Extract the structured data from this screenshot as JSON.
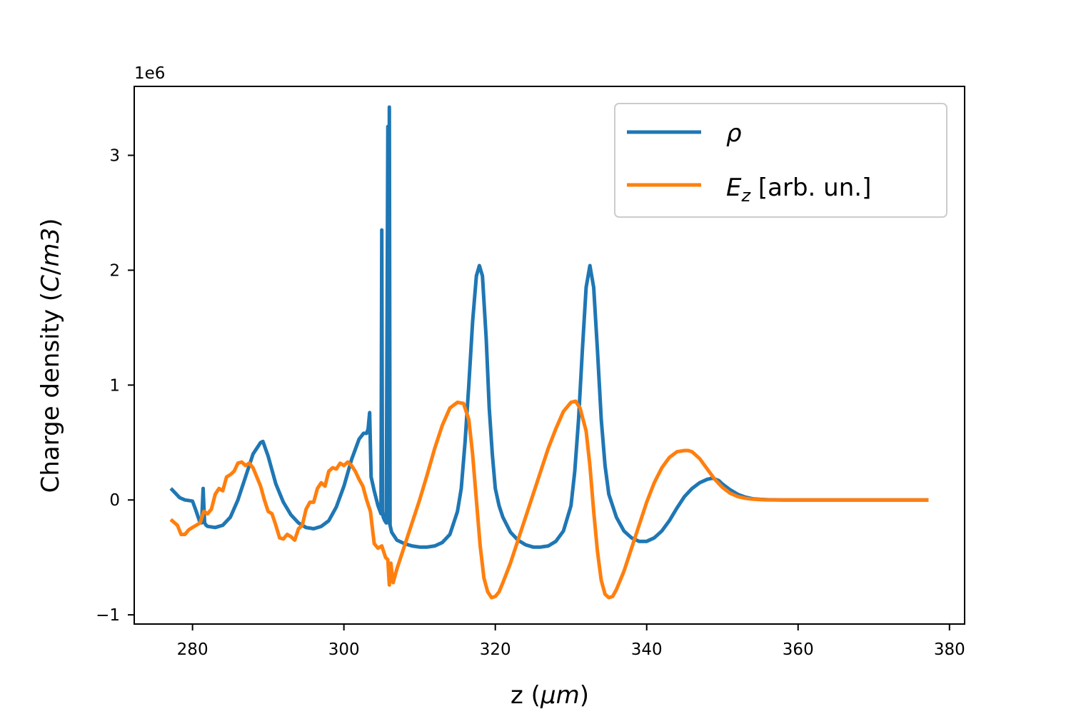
{
  "chart_data": {
    "type": "line",
    "xlabel": "z (μm)",
    "ylabel": "Charge density (C/m3)",
    "offset_text": "1e6",
    "y_scale": 1000000,
    "xlim": [
      272.3,
      382
    ],
    "ylim": [
      -1.08,
      3.6
    ],
    "x_ticks": [
      280,
      300,
      320,
      340,
      360,
      380
    ],
    "y_ticks": [
      -1,
      0,
      1,
      2,
      3
    ],
    "y_tick_labels": [
      "−1",
      "0",
      "1",
      "2",
      "3"
    ],
    "legend": {
      "position": "upper right"
    },
    "series": [
      {
        "name": "ρ",
        "color": "#1f77b4",
        "x": [
          277.3,
          278.3,
          279.0,
          280.0,
          280.5,
          280.9,
          281.2,
          281.4,
          281.5,
          281.6,
          281.8,
          282.0,
          283.0,
          284.0,
          285.0,
          286.0,
          287.0,
          288.0,
          289.0,
          289.3,
          290.0,
          291.0,
          292.0,
          293.0,
          294.0,
          295.0,
          296.0,
          297.0,
          298.0,
          299.0,
          300.0,
          301.0,
          302.0,
          302.6,
          303.0,
          303.2,
          303.4,
          303.6,
          304.0,
          304.5,
          304.9,
          305.0,
          305.1,
          305.2,
          305.4,
          305.6,
          305.8,
          305.9,
          306.0,
          306.1,
          306.2,
          306.3,
          306.5,
          307.0,
          308.0,
          309.0,
          310.0,
          311.0,
          312.0,
          313.0,
          314.0,
          315.0,
          315.5,
          316.0,
          316.5,
          317.0,
          317.5,
          317.9,
          318.3,
          318.8,
          319.2,
          319.6,
          320.0,
          320.5,
          321.0,
          322.0,
          323.0,
          324.0,
          325.0,
          326.0,
          327.0,
          328.0,
          329.0,
          330.0,
          330.5,
          331.0,
          331.5,
          332.0,
          332.5,
          333.0,
          333.5,
          334.0,
          334.5,
          335.0,
          336.0,
          337.0,
          338.0,
          339.0,
          340.0,
          341.0,
          342.0,
          343.0,
          344.0,
          345.0,
          346.0,
          347.0,
          348.0,
          348.7,
          349.5,
          350.0,
          351.0,
          352.0,
          353.0,
          354.0,
          355.0,
          356.0,
          358.0,
          360.0,
          365.0,
          370.0,
          377.0
        ],
        "y": [
          0.09,
          0.02,
          0.0,
          -0.01,
          -0.1,
          -0.18,
          -0.2,
          0.1,
          -0.05,
          -0.2,
          -0.22,
          -0.23,
          -0.24,
          -0.22,
          -0.15,
          0.0,
          0.2,
          0.4,
          0.5,
          0.51,
          0.38,
          0.14,
          -0.02,
          -0.13,
          -0.2,
          -0.24,
          -0.25,
          -0.23,
          -0.18,
          -0.06,
          0.12,
          0.35,
          0.53,
          0.58,
          0.58,
          0.62,
          0.76,
          0.2,
          0.08,
          -0.05,
          -0.12,
          2.35,
          -0.1,
          -0.15,
          -0.18,
          -0.2,
          3.25,
          -0.2,
          3.42,
          -0.22,
          -0.25,
          -0.28,
          -0.3,
          -0.35,
          -0.38,
          -0.4,
          -0.41,
          -0.41,
          -0.4,
          -0.37,
          -0.3,
          -0.1,
          0.1,
          0.5,
          1.0,
          1.55,
          1.95,
          2.04,
          1.95,
          1.4,
          0.8,
          0.4,
          0.1,
          -0.05,
          -0.15,
          -0.28,
          -0.35,
          -0.39,
          -0.41,
          -0.41,
          -0.4,
          -0.36,
          -0.27,
          -0.05,
          0.25,
          0.7,
          1.3,
          1.85,
          2.04,
          1.85,
          1.3,
          0.7,
          0.3,
          0.05,
          -0.15,
          -0.27,
          -0.33,
          -0.36,
          -0.36,
          -0.33,
          -0.27,
          -0.18,
          -0.07,
          0.03,
          0.1,
          0.15,
          0.18,
          0.19,
          0.17,
          0.14,
          0.09,
          0.05,
          0.025,
          0.01,
          0.005,
          0.002,
          0.0,
          0.0,
          0.0,
          0.0,
          0.0
        ]
      },
      {
        "name": "Ez [arb. un.]",
        "color": "#ff7f0e",
        "x": [
          277.3,
          278.0,
          278.5,
          279.0,
          279.5,
          280.0,
          280.5,
          281.0,
          281.5,
          282.0,
          282.5,
          283.0,
          283.5,
          284.0,
          284.5,
          285.0,
          285.5,
          286.0,
          286.5,
          287.0,
          287.5,
          288.0,
          288.5,
          289.0,
          289.5,
          290.0,
          290.5,
          291.0,
          291.5,
          292.0,
          292.5,
          293.0,
          293.5,
          294.0,
          294.5,
          295.0,
          295.5,
          296.0,
          296.5,
          297.0,
          297.5,
          298.0,
          298.5,
          299.0,
          299.5,
          300.0,
          300.5,
          301.0,
          301.5,
          302.0,
          302.5,
          303.0,
          303.5,
          304.0,
          304.5,
          305.0,
          305.5,
          305.8,
          306.0,
          306.2,
          306.5,
          307.0,
          307.5,
          308.0,
          309.0,
          310.0,
          311.0,
          312.0,
          313.0,
          314.0,
          315.0,
          315.8,
          316.5,
          317.0,
          317.5,
          318.0,
          318.5,
          319.0,
          319.5,
          320.0,
          320.5,
          321.0,
          322.0,
          323.0,
          324.0,
          325.0,
          326.0,
          327.0,
          328.0,
          329.0,
          330.0,
          330.6,
          331.2,
          332.0,
          332.5,
          333.0,
          333.5,
          334.0,
          334.5,
          335.0,
          335.5,
          336.0,
          337.0,
          338.0,
          339.0,
          340.0,
          341.0,
          342.0,
          343.0,
          344.0,
          345.0,
          345.5,
          346.0,
          347.0,
          348.0,
          349.0,
          350.0,
          351.0,
          352.0,
          353.0,
          354.0,
          355.0,
          356.0,
          358.0,
          360.0,
          365.0,
          370.0,
          377.0
        ],
        "y": [
          -0.18,
          -0.22,
          -0.3,
          -0.3,
          -0.26,
          -0.24,
          -0.22,
          -0.2,
          -0.1,
          -0.12,
          -0.08,
          0.05,
          0.1,
          0.08,
          0.2,
          0.22,
          0.25,
          0.32,
          0.33,
          0.3,
          0.32,
          0.28,
          0.2,
          0.12,
          0.0,
          -0.1,
          -0.12,
          -0.22,
          -0.33,
          -0.34,
          -0.3,
          -0.32,
          -0.35,
          -0.25,
          -0.22,
          -0.08,
          -0.02,
          -0.02,
          0.1,
          0.15,
          0.12,
          0.25,
          0.28,
          0.27,
          0.32,
          0.3,
          0.33,
          0.3,
          0.25,
          0.18,
          0.12,
          0.0,
          -0.1,
          -0.38,
          -0.42,
          -0.4,
          -0.5,
          -0.52,
          -0.74,
          -0.55,
          -0.72,
          -0.6,
          -0.5,
          -0.4,
          -0.2,
          0.0,
          0.22,
          0.45,
          0.65,
          0.8,
          0.85,
          0.84,
          0.7,
          0.4,
          0.0,
          -0.4,
          -0.68,
          -0.8,
          -0.85,
          -0.84,
          -0.8,
          -0.72,
          -0.55,
          -0.35,
          -0.15,
          0.05,
          0.25,
          0.45,
          0.62,
          0.77,
          0.85,
          0.86,
          0.8,
          0.6,
          0.3,
          -0.1,
          -0.45,
          -0.7,
          -0.82,
          -0.85,
          -0.84,
          -0.78,
          -0.62,
          -0.42,
          -0.22,
          -0.02,
          0.15,
          0.28,
          0.37,
          0.42,
          0.43,
          0.43,
          0.42,
          0.36,
          0.27,
          0.18,
          0.11,
          0.06,
          0.03,
          0.015,
          0.007,
          0.003,
          0.001,
          0.0,
          0.0,
          0.0,
          0.0,
          0.0
        ]
      }
    ]
  }
}
